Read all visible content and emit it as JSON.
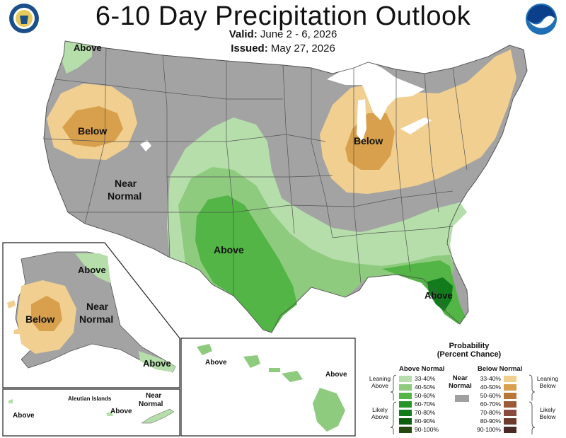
{
  "header": {
    "title": "6-10 Day Precipitation Outlook",
    "valid_label": "Valid:",
    "valid_value": "June 2 - 6, 2026",
    "issued_label": "Issued:",
    "issued_value": "May 27, 2026"
  },
  "logos": {
    "left": "department-of-commerce-seal",
    "right": "noaa-logo"
  },
  "map_labels": {
    "wa_above": "Above",
    "west_below": "Below",
    "near_normal_1": "Near",
    "near_normal_2": "Normal",
    "southwest_above": "Above",
    "east_below": "Below",
    "florida_above": "Above"
  },
  "alaska_labels": {
    "above_north": "Above",
    "below": "Below",
    "near_normal_1": "Near",
    "near_normal_2": "Normal",
    "above_southeast": "Above"
  },
  "aleutian_labels": {
    "title": "Aleutian Islands",
    "above_left": "Above",
    "above_right": "Above",
    "near_normal_1": "Near",
    "near_normal_2": "Normal"
  },
  "hawaii_labels": {
    "above_left": "Above",
    "above_right": "Above"
  },
  "legend": {
    "title_1": "Probability",
    "title_2": "(Percent Chance)",
    "above_header": "Above Normal",
    "below_header": "Below Normal",
    "near_normal_1": "Near",
    "near_normal_2": "Normal",
    "leaning_above_1": "Leaning",
    "leaning_above_2": "Above",
    "likely_above_1": "Likely",
    "likely_above_2": "Above",
    "leaning_below_1": "Leaning",
    "leaning_below_2": "Below",
    "likely_below_1": "Likely",
    "likely_below_2": "Below",
    "above_rows": [
      {
        "range": "33-40%",
        "color": "#b5deaa"
      },
      {
        "range": "40-50%",
        "color": "#8ecb7e"
      },
      {
        "range": "50-60%",
        "color": "#52b545"
      },
      {
        "range": "60-70%",
        "color": "#27962a"
      },
      {
        "range": "70-80%",
        "color": "#127b1c"
      },
      {
        "range": "80-90%",
        "color": "#0a5e12"
      },
      {
        "range": "90-100%",
        "color": "#254a10"
      }
    ],
    "below_rows": [
      {
        "range": "33-40%",
        "color": "#f1cf90"
      },
      {
        "range": "40-50%",
        "color": "#d8a04c"
      },
      {
        "range": "50-60%",
        "color": "#b67738"
      },
      {
        "range": "60-70%",
        "color": "#9b5a36"
      },
      {
        "range": "70-80%",
        "color": "#8a4a3e"
      },
      {
        "range": "80-90%",
        "color": "#6e3a2b"
      },
      {
        "range": "90-100%",
        "color": "#4b2a26"
      }
    ],
    "near_normal_color": "#a0a0a0"
  }
}
